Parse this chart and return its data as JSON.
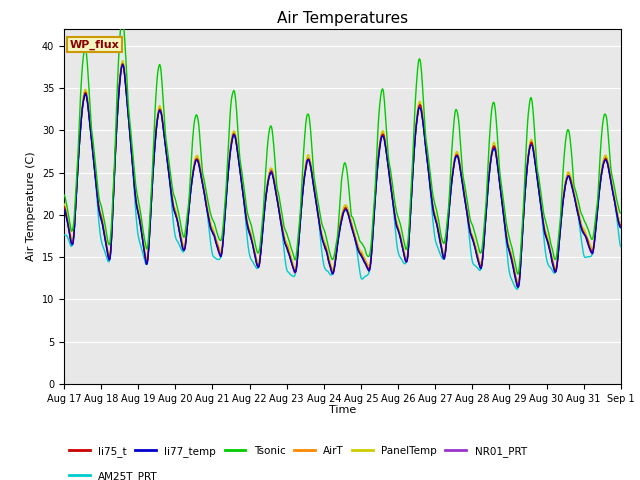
{
  "title": "Air Temperatures",
  "xlabel": "Time",
  "ylabel": "Air Temperature (C)",
  "ylim": [
    0,
    42
  ],
  "yticks": [
    0,
    5,
    10,
    15,
    20,
    25,
    30,
    35,
    40
  ],
  "plot_bg": "#e8e8e8",
  "annotation_text": "WP_flux",
  "annotation_color": "#8b0000",
  "annotation_bg": "#f5f5c0",
  "annotation_border": "#cc9900",
  "legend_entries": [
    "li75_t",
    "li77_temp",
    "Tsonic",
    "AirT",
    "PanelTemp",
    "NR01_PRT",
    "AM25T_PRT"
  ],
  "line_colors": [
    "#cc0000",
    "#0000cc",
    "#00cc00",
    "#ff8800",
    "#cccc00",
    "#9933cc",
    "#00cccc"
  ],
  "start_day": 17,
  "n_days": 15,
  "points_per_day": 96,
  "day_max": [
    35.0,
    38.5,
    33.0,
    27.0,
    30.0,
    25.5,
    27.0,
    21.0,
    30.0,
    33.5,
    27.5,
    28.5,
    29.0,
    25.0,
    27.0
  ],
  "night_min": [
    15.5,
    13.5,
    13.0,
    15.0,
    14.5,
    13.0,
    12.5,
    12.5,
    13.0,
    13.5,
    14.0,
    13.0,
    10.5,
    12.5,
    15.0
  ],
  "tsonic_extra": 5.5,
  "am25t_cold_extra": -3.0,
  "figsize": [
    6.4,
    4.8
  ],
  "dpi": 100
}
